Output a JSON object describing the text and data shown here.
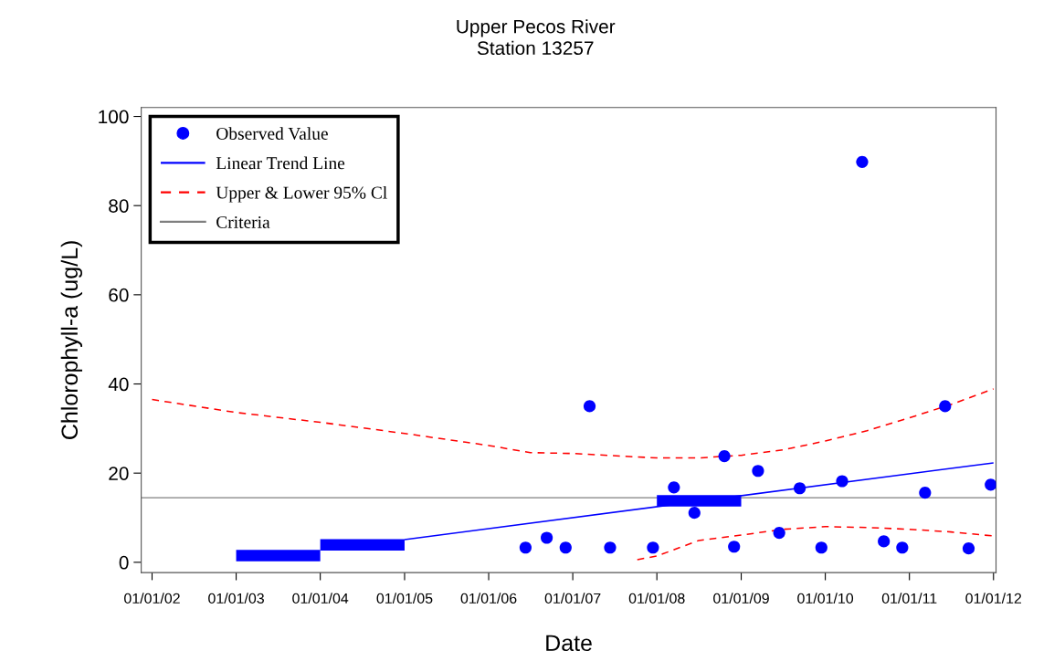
{
  "chart_data": {
    "type": "scatter",
    "title": "Upper Pecos River",
    "subtitle": "Station 13257",
    "xlabel": "Date",
    "ylabel": "Chlorophyll-a (ug/L)",
    "xlim": [
      "2001-11-15",
      "2012-01-12"
    ],
    "ylim": [
      -2.3,
      102
    ],
    "xticks": [
      {
        "value": "2002-01-01",
        "label": "01/01/02"
      },
      {
        "value": "2003-01-01",
        "label": "01/01/03"
      },
      {
        "value": "2004-01-01",
        "label": "01/01/04"
      },
      {
        "value": "2005-01-01",
        "label": "01/01/05"
      },
      {
        "value": "2006-01-01",
        "label": "01/01/06"
      },
      {
        "value": "2007-01-01",
        "label": "01/01/07"
      },
      {
        "value": "2008-01-01",
        "label": "01/01/08"
      },
      {
        "value": "2009-01-01",
        "label": "01/01/09"
      },
      {
        "value": "2010-01-01",
        "label": "01/01/10"
      },
      {
        "value": "2011-01-01",
        "label": "01/01/11"
      },
      {
        "value": "2012-01-01",
        "label": "01/01/12"
      }
    ],
    "yticks": [
      0,
      20,
      40,
      60,
      80,
      100
    ],
    "legend": "top left",
    "series": [
      {
        "name": "Observed Value",
        "color": "#0000ff",
        "marker": "circle",
        "x": [
          "2006-06-10",
          "2006-09-10",
          "2006-12-01",
          "2007-03-15",
          "2007-06-12",
          "2007-12-15",
          "2008-03-15",
          "2008-06-12",
          "2008-10-20",
          "2008-12-01",
          "2009-03-15",
          "2009-06-15",
          "2009-09-12",
          "2009-12-15",
          "2010-03-15",
          "2010-06-10",
          "2010-09-12",
          "2010-12-01",
          "2011-03-10",
          "2011-06-05",
          "2011-09-15",
          "2011-12-20"
        ],
        "values": [
          3.3,
          5.5,
          3.3,
          35.0,
          3.3,
          3.3,
          16.8,
          11.1,
          23.8,
          3.5,
          20.5,
          6.6,
          16.6,
          3.3,
          18.2,
          89.8,
          4.7,
          3.3,
          15.6,
          35.0,
          3.1,
          17.4
        ]
      },
      {
        "type": "line",
        "name": "Linear Trend Line",
        "color": "#0000ff",
        "x": [
          "2005-01-01",
          "2012-01-01"
        ],
        "values": [
          5.1,
          22.3
        ]
      },
      {
        "type": "line",
        "name": "Upper & Lower 95% Cl",
        "color": "#ff0000",
        "line_style": "dashed",
        "x": [
          "2002-01-01",
          "2003-01-01",
          "2004-01-01",
          "2005-01-01",
          "2006-01-01",
          "2006-07-01",
          "2007-01-01",
          "2008-01-01",
          "2008-07-01",
          "2009-01-01",
          "2009-07-01",
          "2010-01-01",
          "2010-07-01",
          "2011-01-01",
          "2011-07-01",
          "2012-01-01"
        ],
        "values": [
          36.5,
          33.6,
          31.4,
          28.9,
          26.2,
          24.6,
          24.4,
          23.4,
          23.4,
          24.0,
          25.2,
          27.2,
          29.5,
          32.4,
          35.4,
          38.9
        ]
      },
      {
        "type": "line",
        "color": "#ff0000",
        "line_style": "dashed",
        "x": [
          "2007-10-08",
          "2008-01-01",
          "2008-07-01",
          "2009-01-01",
          "2009-07-01",
          "2010-01-01",
          "2010-07-01",
          "2011-01-01",
          "2011-07-01",
          "2012-01-01"
        ],
        "values": [
          0.6,
          1.4,
          4.9,
          6.1,
          7.4,
          8.0,
          7.8,
          7.4,
          6.8,
          5.9
        ]
      },
      {
        "type": "step",
        "color": "#0000ff",
        "x": [
          "2003-01-01",
          "2004-01-01"
        ],
        "values": [
          1.5,
          1.5
        ]
      },
      {
        "type": "step",
        "color": "#0000ff",
        "x": [
          "2004-01-01",
          "2005-01-01"
        ],
        "values": [
          3.9,
          3.9
        ]
      },
      {
        "type": "step",
        "color": "#0000ff",
        "x": [
          "2008-01-01",
          "2009-01-01"
        ],
        "values": [
          13.8,
          13.8
        ]
      }
    ],
    "ref_lines": [
      {
        "axis": "y",
        "value": 14.5,
        "label": "Criteria",
        "color": "#808080"
      }
    ]
  }
}
